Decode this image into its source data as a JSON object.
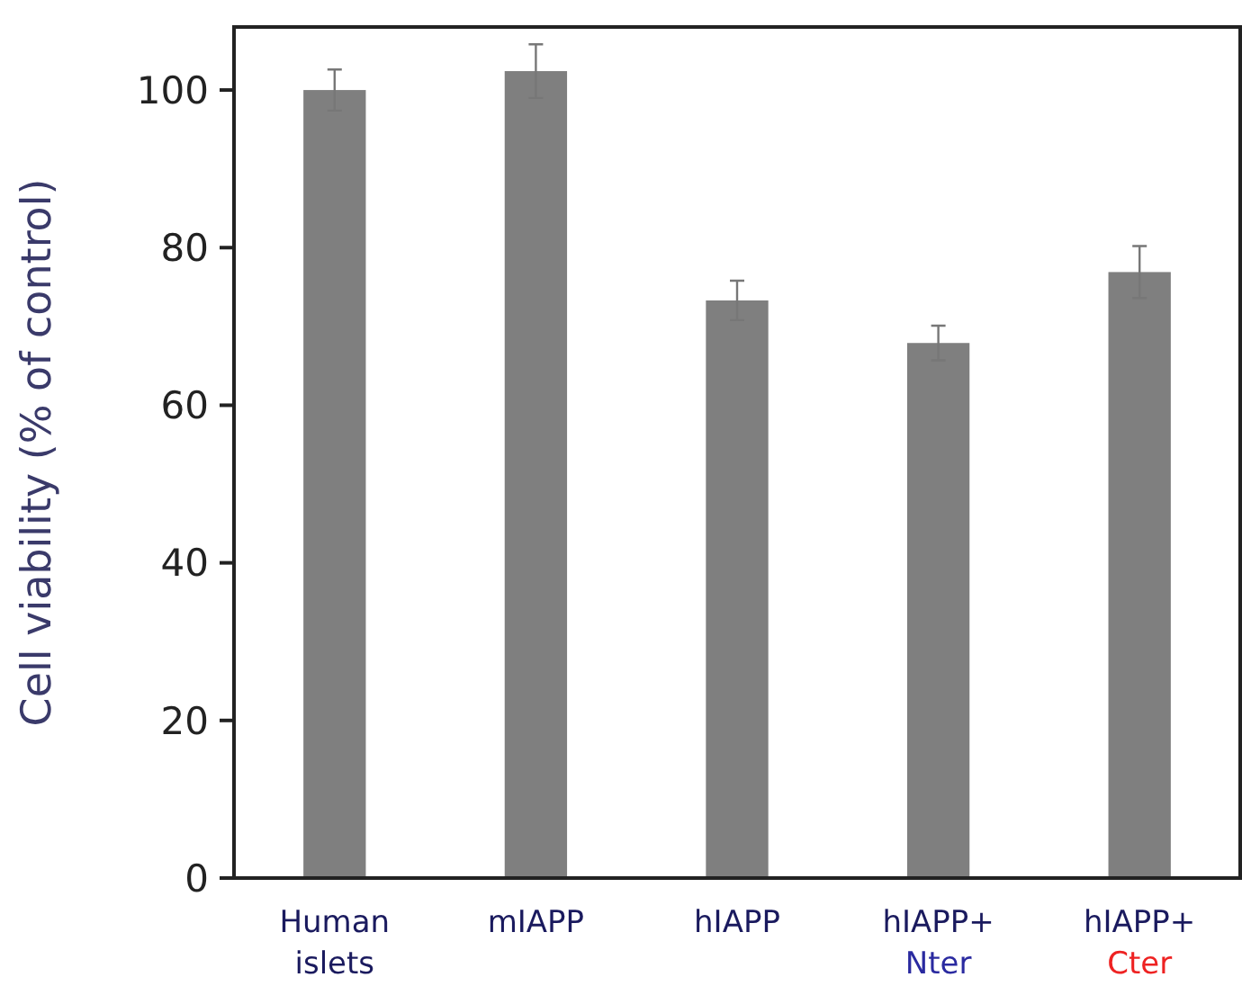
{
  "chart_data": {
    "type": "bar",
    "ylabel": "Cell viability (% of control)",
    "categories": [
      "Human\nislets",
      "mIAPP",
      "hIAPP",
      "hIAPP+\nNter",
      "hIAPP+\nCter"
    ],
    "values": [
      100,
      102.4,
      73.3,
      67.9,
      76.9
    ],
    "errors": [
      2.6,
      3.4,
      2.5,
      2.2,
      3.3
    ],
    "color": "#7f7f7f",
    "ylim": [
      0,
      108
    ],
    "yticks": [
      0,
      20,
      40,
      60,
      80,
      100
    ],
    "grid": false
  }
}
